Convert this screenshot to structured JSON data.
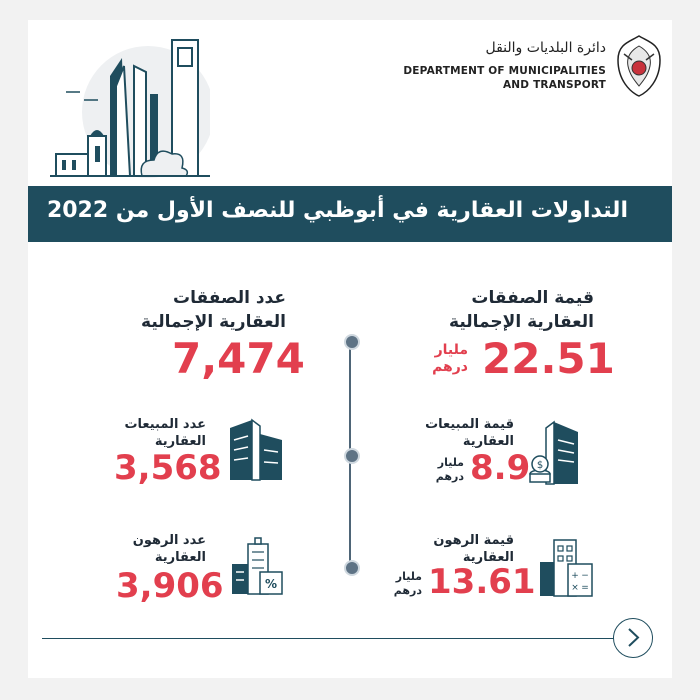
{
  "header": {
    "logo_ar": "دائرة البلديات والنقل",
    "logo_en_line1": "DEPARTMENT OF MUNICIPALITIES",
    "logo_en_line2": "AND TRANSPORT"
  },
  "banner": {
    "title": "التداولات العقارية في أبوظبي للنصف الأول من 2022"
  },
  "stats": {
    "total_value": {
      "label_line1": "قيمة الصفقات",
      "label_line2": "العقارية الإجمالية",
      "value": "22.51",
      "unit_line1": "مليار",
      "unit_line2": "درهم"
    },
    "total_count": {
      "label_line1": "عدد الصفقات",
      "label_line2": "العقارية الإجمالية",
      "value": "7,474"
    },
    "sales_value": {
      "label_line1": "قيمة المبيعات",
      "label_line2": "العقارية",
      "value": "8.9",
      "unit_line1": "مليار",
      "unit_line2": "درهم"
    },
    "sales_count": {
      "label_line1": "عدد المبيعات",
      "label_line2": "العقارية",
      "value": "3,568"
    },
    "mortgage_value": {
      "label_line1": "قيمة الرهون",
      "label_line2": "العقارية",
      "value": "13.61",
      "unit_line1": "مليار",
      "unit_line2": "درهم"
    },
    "mortgage_count": {
      "label_line1": "عدد الرهون",
      "label_line2": "العقارية",
      "value": "3,906"
    }
  },
  "icons": {
    "emblem": "abu-dhabi-falcon-emblem-icon",
    "skyline": "city-skyline-icon",
    "sales": "buildings-icon",
    "sales_value": "building-coins-icon",
    "mortgage": "building-percent-icon",
    "mortgage_value": "building-calculator-icon",
    "next": "chevron-right-icon"
  },
  "colors": {
    "banner": "#1f4d5e",
    "accent": "#e23f4e",
    "text": "#1f2a36"
  }
}
